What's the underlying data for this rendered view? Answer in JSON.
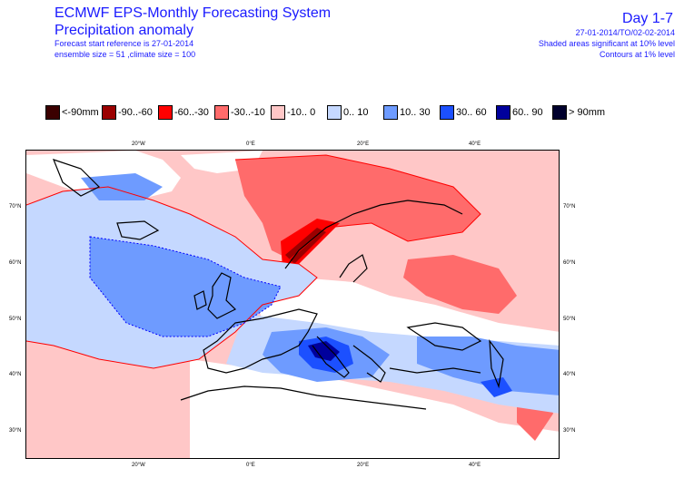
{
  "header": {
    "title_line1": "ECMWF EPS-Monthly Forecasting System",
    "title_line2": "Precipitation anomaly",
    "forecast_start": "Forecast start reference is 27-01-2014",
    "ensemble": "ensemble size = 51  ,climate size = 100",
    "period": "Day 1-7",
    "dates": "27-01-2014/TO/02-02-2014",
    "significance_shaded": "Shaded areas significant at 10% level",
    "significance_contours": "Contours at 1% level"
  },
  "legend": [
    {
      "label": "<-90mm",
      "color": "#3b0000"
    },
    {
      "label": "-90..-60",
      "color": "#9b0000"
    },
    {
      "label": "-60..-30",
      "color": "#ff0000"
    },
    {
      "label": "-30..-10",
      "color": "#ff6b6b"
    },
    {
      "label": "-10..  0",
      "color": "#ffc7c7"
    },
    {
      "label": "0..  10",
      "color": "#c5d8ff"
    },
    {
      "label": "10..  30",
      "color": "#6e9bff"
    },
    {
      "label": "30..  60",
      "color": "#1c50ff"
    },
    {
      "label": "60..  90",
      "color": "#00009c"
    },
    {
      "label": ">  90mm",
      "color": "#00002d"
    }
  ],
  "map": {
    "lon_labels": [
      "20°W",
      "0°E",
      "20°E",
      "40°E"
    ],
    "lat_labels": [
      "70°N",
      "60°N",
      "50°N",
      "40°N",
      "30°N"
    ]
  }
}
